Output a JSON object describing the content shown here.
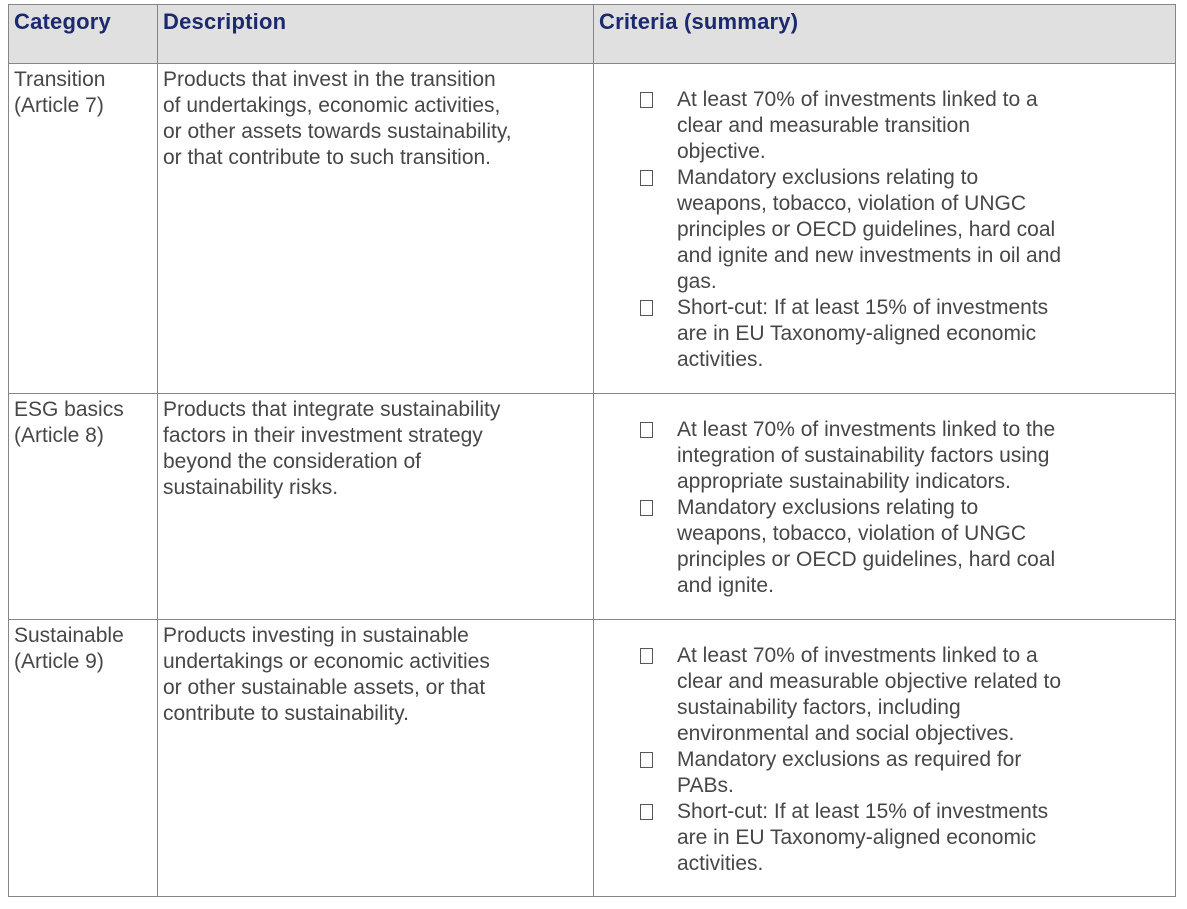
{
  "colors": {
    "header_background": "#e0e0e0",
    "header_text": "#1b2a6e",
    "body_text": "#474747",
    "border": "#868686",
    "page_background": "#ffffff"
  },
  "icons": {
    "bullet": "empty-square-checkbox (□)"
  },
  "table": {
    "headers": {
      "category": "Category",
      "description": "Description",
      "criteria": "Criteria (summary)"
    },
    "rows": [
      {
        "category": "Transition\n(Article 7)",
        "description": "Products that invest in the transition\nof undertakings, economic activities,\nor other assets towards sustainability,\nor that contribute to such transition.",
        "criteria": [
          "At least 70% of investments linked to a\nclear and measurable transition\nobjective.",
          "Mandatory exclusions relating to\nweapons, tobacco, violation of UNGC\nprinciples or OECD guidelines, hard coal\nand ignite and new investments in oil and\ngas.",
          "Short-cut: If at least 15% of investments\nare in EU Taxonomy-aligned economic\nactivities."
        ]
      },
      {
        "category": "ESG basics\n(Article 8)",
        "description": "Products that integrate sustainability\nfactors in their investment strategy\nbeyond the consideration of\nsustainability risks.",
        "criteria": [
          "At least 70% of investments linked to the\nintegration of sustainability factors using\nappropriate sustainability indicators.",
          "Mandatory exclusions relating to\nweapons, tobacco, violation of UNGC\nprinciples or OECD guidelines, hard coal\nand ignite."
        ]
      },
      {
        "category": "Sustainable\n(Article 9)",
        "description": "Products investing in sustainable\nundertakings or economic activities\nor other sustainable assets, or that\ncontribute to sustainability.",
        "criteria": [
          "At least 70% of investments linked to a\nclear and measurable objective related to\nsustainability factors, including\nenvironmental and social objectives.",
          "Mandatory exclusions as required for\nPABs.",
          "Short-cut: If at least 15% of investments\nare in EU Taxonomy-aligned economic\nactivities."
        ]
      }
    ]
  }
}
